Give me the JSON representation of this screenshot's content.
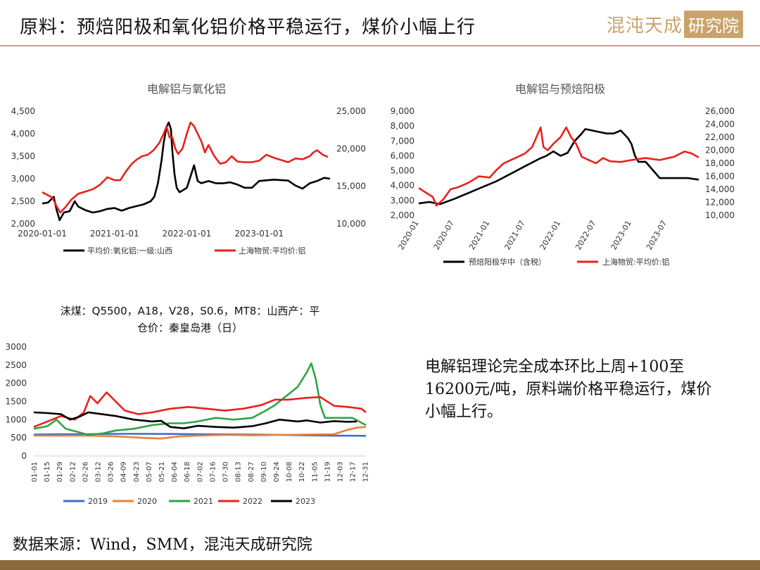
{
  "header": {
    "title": "原料：预焙阳极和氧化铝价格平稳运行，煤价小幅上行",
    "logo_text_1": "混沌天成",
    "logo_text_2": "研究院"
  },
  "summary": "电解铝理论完全成本环比上周+100至16200元/吨，原料端价格平稳运行，煤价小幅上行。",
  "source": "数据来源：Wind，SMM，混沌天成研究院",
  "colors": {
    "black": "#000000",
    "red": "#e8221b",
    "blue": "#3b6fc4",
    "orange": "#e8823a",
    "green": "#2ca548",
    "accent": "#c9a46a"
  },
  "chart_data": [
    {
      "type": "line",
      "title": "电解铝与氧化铝",
      "x_ticks": [
        "2020-01-01",
        "2021-01-01",
        "2022-01-01",
        "2023-01-01"
      ],
      "x_range": [
        "2020-01-01",
        "2023-12-31"
      ],
      "ylim_left": [
        2000,
        4500
      ],
      "yticks_left": [
        "2,000",
        "2,500",
        "3,000",
        "3,500",
        "4,000",
        "4,500"
      ],
      "ylim_right": [
        10000,
        25000
      ],
      "yticks_right": [
        "10,000",
        "15,000",
        "20,000",
        "25,000"
      ],
      "series": [
        {
          "name": "平均价:氧化铝:一级:山西",
          "axis": "left",
          "color": "#000000",
          "x": [
            2020.0,
            2020.08,
            2020.16,
            2020.2,
            2020.24,
            2020.3,
            2020.38,
            2020.45,
            2020.5,
            2020.6,
            2020.7,
            2020.8,
            2020.9,
            2021.0,
            2021.1,
            2021.2,
            2021.3,
            2021.4,
            2021.5,
            2021.55,
            2021.6,
            2021.65,
            2021.68,
            2021.72,
            2021.75,
            2021.78,
            2021.8,
            2021.83,
            2021.86,
            2021.9,
            2021.95,
            2022.0,
            2022.05,
            2022.1,
            2022.15,
            2022.2,
            2022.3,
            2022.4,
            2022.5,
            2022.6,
            2022.7,
            2022.8,
            2022.9,
            2023.0,
            2023.2,
            2023.4,
            2023.5,
            2023.6,
            2023.7,
            2023.8,
            2023.9,
            2023.98
          ],
          "y": [
            2450,
            2470,
            2600,
            2300,
            2080,
            2250,
            2280,
            2500,
            2380,
            2300,
            2250,
            2280,
            2330,
            2350,
            2290,
            2350,
            2390,
            2430,
            2500,
            2600,
            2900,
            3400,
            3800,
            4150,
            4250,
            4100,
            3600,
            3100,
            2800,
            2700,
            2750,
            2800,
            3050,
            3300,
            2950,
            2900,
            2950,
            2900,
            2900,
            2920,
            2870,
            2800,
            2800,
            2950,
            2980,
            2960,
            2850,
            2780,
            2900,
            2950,
            3020,
            3000
          ]
        },
        {
          "name": "上海物贸:平均价:铝",
          "axis": "right",
          "color": "#e8221b",
          "x": [
            2020.0,
            2020.08,
            2020.14,
            2020.2,
            2020.25,
            2020.32,
            2020.4,
            2020.5,
            2020.6,
            2020.7,
            2020.8,
            2020.9,
            2021.0,
            2021.08,
            2021.16,
            2021.24,
            2021.3,
            2021.38,
            2021.46,
            2021.54,
            2021.62,
            2021.68,
            2021.72,
            2021.76,
            2021.8,
            2021.84,
            2021.88,
            2021.94,
            2022.0,
            2022.05,
            2022.1,
            2022.15,
            2022.2,
            2022.25,
            2022.3,
            2022.38,
            2022.46,
            2022.54,
            2022.62,
            2022.7,
            2022.8,
            2022.9,
            2023.0,
            2023.1,
            2023.2,
            2023.3,
            2023.4,
            2023.5,
            2023.6,
            2023.7,
            2023.75,
            2023.8,
            2023.88,
            2023.95
          ],
          "y": [
            14200,
            13800,
            13500,
            12300,
            11500,
            12200,
            13200,
            14000,
            14300,
            14600,
            15200,
            16200,
            15800,
            15800,
            17000,
            18000,
            18500,
            19000,
            19200,
            19800,
            20800,
            22000,
            23000,
            21500,
            21500,
            20000,
            19300,
            20000,
            22000,
            23500,
            23000,
            22000,
            21000,
            19500,
            20500,
            19000,
            18000,
            18200,
            19000,
            18300,
            18200,
            18200,
            18400,
            19200,
            18800,
            18500,
            18200,
            18700,
            18600,
            19000,
            19500,
            19800,
            19200,
            18900
          ]
        }
      ]
    },
    {
      "type": "line",
      "title": "电解铝与预焙阳极",
      "x_ticks": [
        "2020-01",
        "2020-07",
        "2021-01",
        "2021-07",
        "2022-01",
        "2022-07",
        "2023-01",
        "2023-07"
      ],
      "x_range": [
        "2020-01",
        "2023-12"
      ],
      "ylim_left": [
        2000,
        9000
      ],
      "yticks_left": [
        "2,000",
        "3,000",
        "4,000",
        "5,000",
        "6,000",
        "7,000",
        "8,000",
        "9,000"
      ],
      "ylim_right": [
        10000,
        26000
      ],
      "yticks_right": [
        "10,000",
        "12,000",
        "14,000",
        "16,000",
        "18,000",
        "20,000",
        "22,000",
        "24,000",
        "26,000"
      ],
      "series": [
        {
          "name": "预焙阳极华中（含税）",
          "axis": "left",
          "color": "#000000",
          "x": [
            2020.0,
            2020.15,
            2020.3,
            2020.5,
            2020.7,
            2020.9,
            2021.1,
            2021.3,
            2021.5,
            2021.7,
            2021.8,
            2021.9,
            2022.0,
            2022.1,
            2022.2,
            2022.3,
            2022.35,
            2022.45,
            2022.55,
            2022.65,
            2022.75,
            2022.85,
            2022.95,
            2023.0,
            2023.05,
            2023.1,
            2023.2,
            2023.4,
            2023.6,
            2023.8,
            2023.95
          ],
          "y": [
            2800,
            2900,
            2750,
            3100,
            3500,
            3900,
            4300,
            4800,
            5300,
            5800,
            6000,
            6300,
            6000,
            6200,
            7000,
            7500,
            7800,
            7700,
            7600,
            7500,
            7500,
            7700,
            7200,
            6800,
            6000,
            5600,
            5600,
            4500,
            4500,
            4500,
            4400
          ]
        },
        {
          "name": "上海物贸:平均价:铝",
          "axis": "right",
          "color": "#e8221b",
          "x": [
            2020.0,
            2020.1,
            2020.2,
            2020.25,
            2020.35,
            2020.45,
            2020.55,
            2020.7,
            2020.85,
            2021.0,
            2021.1,
            2021.2,
            2021.3,
            2021.4,
            2021.5,
            2021.6,
            2021.68,
            2021.72,
            2021.76,
            2021.82,
            2021.9,
            2022.0,
            2022.08,
            2022.15,
            2022.22,
            2022.3,
            2022.4,
            2022.5,
            2022.6,
            2022.7,
            2022.85,
            2023.0,
            2023.2,
            2023.4,
            2023.6,
            2023.75,
            2023.85,
            2023.95
          ],
          "y": [
            14200,
            13500,
            12800,
            11500,
            12500,
            14000,
            14300,
            15000,
            16000,
            15800,
            17000,
            18000,
            18500,
            19000,
            19500,
            20500,
            22500,
            23500,
            20500,
            20000,
            21000,
            22000,
            23500,
            22000,
            21000,
            19000,
            18500,
            18000,
            18800,
            18300,
            18200,
            18500,
            18800,
            18500,
            19000,
            19800,
            19500,
            18900
          ]
        }
      ]
    },
    {
      "type": "line",
      "title": "沫煤：Q5500，A18，V28，S0.6，MT8：山西产：平仓价：秦皇岛港（日）",
      "x_ticks": [
        "01-01",
        "01-15",
        "01-29",
        "02-12",
        "02-26",
        "03-12",
        "03-26",
        "04-09",
        "04-23",
        "05-07",
        "05-21",
        "06-04",
        "06-18",
        "07-02",
        "07-16",
        "07-30",
        "08-13",
        "08-27",
        "09-10",
        "09-24",
        "10-08",
        "10-22",
        "11-05",
        "11-19",
        "12-03",
        "12-17",
        "12-31"
      ],
      "x_range": [
        0,
        365
      ],
      "ylim": [
        0,
        3000
      ],
      "yticks": [
        "0",
        "500",
        "1000",
        "1500",
        "2000",
        "2500",
        "3000"
      ],
      "series": [
        {
          "name": "2019",
          "color": "#3b6fc4",
          "x": [
            0,
            30,
            60,
            90,
            120,
            150,
            180,
            210,
            240,
            270,
            300,
            330,
            365
          ],
          "y": [
            590,
            600,
            600,
            610,
            610,
            605,
            600,
            595,
            590,
            580,
            570,
            560,
            555
          ]
        },
        {
          "name": "2020",
          "color": "#e8823a",
          "x": [
            0,
            30,
            60,
            90,
            120,
            140,
            160,
            180,
            210,
            240,
            270,
            300,
            330,
            345,
            355,
            365
          ],
          "y": [
            560,
            560,
            560,
            540,
            500,
            480,
            540,
            560,
            580,
            570,
            580,
            590,
            600,
            720,
            780,
            800
          ]
        },
        {
          "name": "2021",
          "color": "#2ca548",
          "x": [
            0,
            15,
            25,
            35,
            50,
            60,
            75,
            90,
            110,
            130,
            150,
            165,
            180,
            200,
            220,
            240,
            255,
            265,
            275,
            290,
            300,
            305,
            310,
            315,
            320,
            330,
            350,
            365
          ],
          "y": [
            750,
            820,
            1000,
            750,
            650,
            580,
            620,
            700,
            750,
            850,
            900,
            900,
            950,
            1050,
            1000,
            1050,
            1250,
            1400,
            1600,
            1900,
            2300,
            2550,
            2100,
            1400,
            1050,
            1050,
            1050,
            850
          ]
        },
        {
          "name": "2022",
          "color": "#e8221b",
          "x": [
            0,
            15,
            30,
            45,
            55,
            62,
            70,
            80,
            90,
            100,
            115,
            130,
            150,
            170,
            190,
            210,
            230,
            250,
            265,
            280,
            300,
            315,
            330,
            345,
            360,
            365
          ],
          "y": [
            800,
            950,
            1100,
            1000,
            1200,
            1650,
            1450,
            1750,
            1500,
            1250,
            1150,
            1200,
            1300,
            1350,
            1300,
            1250,
            1300,
            1400,
            1550,
            1550,
            1600,
            1620,
            1380,
            1350,
            1300,
            1200
          ]
        },
        {
          "name": "2023",
          "color": "#000000",
          "x": [
            0,
            15,
            30,
            40,
            50,
            60,
            75,
            90,
            110,
            130,
            140,
            150,
            165,
            180,
            200,
            220,
            240,
            255,
            270,
            290,
            300,
            315,
            330,
            345,
            355
          ],
          "y": [
            1200,
            1180,
            1150,
            1000,
            1080,
            1200,
            1150,
            1100,
            1000,
            950,
            970,
            800,
            760,
            830,
            800,
            780,
            820,
            900,
            1000,
            950,
            980,
            920,
            960,
            940,
            950
          ]
        }
      ]
    }
  ]
}
